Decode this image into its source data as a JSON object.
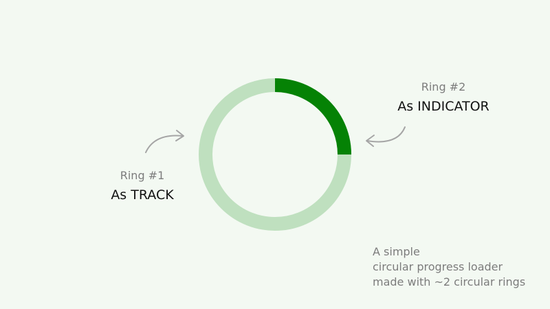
{
  "progress": {
    "value": 0.25,
    "track_color": "#bfe0bf",
    "indicator_color": "#058205"
  },
  "ring1": {
    "sublabel": "Ring #1",
    "label": "As TRACK"
  },
  "ring2": {
    "sublabel": "Ring #2",
    "label": "As INDICATOR"
  },
  "caption": {
    "lines": [
      "A simple",
      "circular progress loader",
      "made with ~2 circular rings"
    ]
  },
  "colors": {
    "background": "#f3f9f2",
    "arrow": "#a5a5a5"
  },
  "icons": {
    "ring1_pointer": "curved-arrow-right-icon",
    "ring2_pointer": "curved-arrow-left-icon"
  }
}
